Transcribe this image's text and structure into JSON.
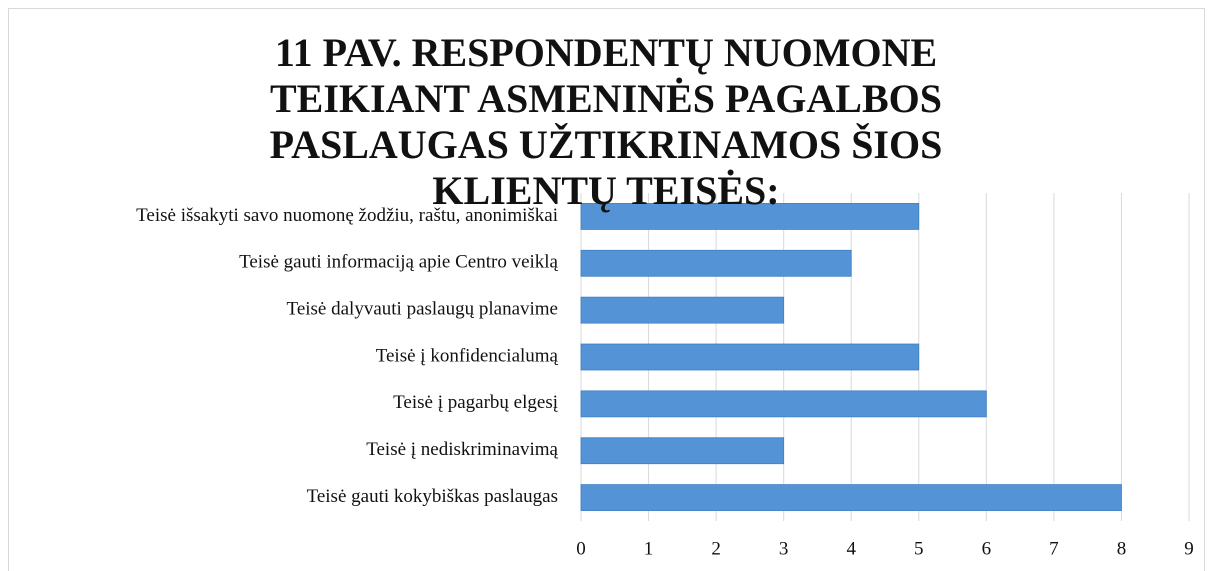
{
  "chart_data": {
    "type": "bar",
    "orientation": "horizontal",
    "title": "11 PAV. RESPONDENTŲ NUOMONE TEIKIANT ASMENINĖS PAGALBOS PASLAUGAS UŽTIKRINAMOS ŠIOS KLIENTŲ TEISĖS:",
    "categories": [
      "Teisė išsakyti savo nuomonę žodžiu, raštu, anonimiškai",
      "Teisė gauti informaciją apie Centro veiklą",
      "Teisė dalyvauti paslaugų planavime",
      "Teisė į konfidencialumą",
      "Teisė į pagarbų elgesį",
      "Teisė į nediskriminavimą",
      "Teisė gauti kokybiškas paslaugas"
    ],
    "values": [
      5,
      4,
      3,
      5,
      6,
      3,
      8
    ],
    "color": "#5393d6",
    "xlim": [
      0,
      9
    ],
    "xticks": [
      0,
      1,
      2,
      3,
      4,
      5,
      6,
      7,
      8,
      9
    ],
    "grid": true
  }
}
